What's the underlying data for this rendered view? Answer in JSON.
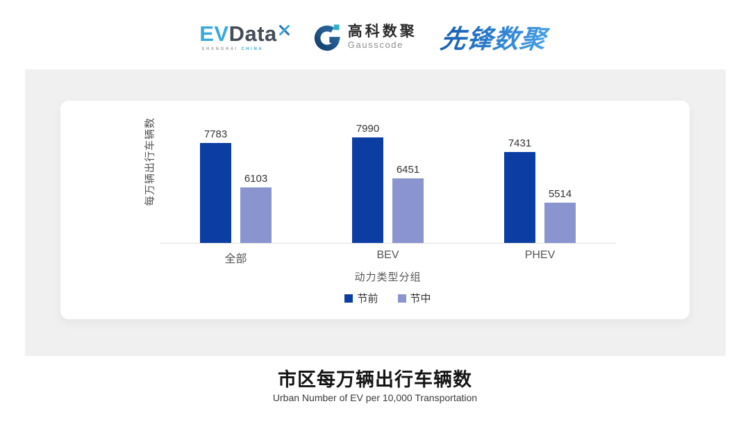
{
  "header": {
    "evdata": {
      "ev": "EV",
      "data": "Data",
      "sub_left": "SHANGHAI",
      "sub_right": "CHINA"
    },
    "gausscode": {
      "cn": "高科数聚",
      "en": "Gausscode"
    },
    "pioneer": {
      "text": "先锋数聚"
    }
  },
  "chart_data": {
    "type": "bar",
    "title": "市区每万辆出行车辆数",
    "subtitle": "Urban Number of EV per 10,000 Transportation",
    "ylabel": "每万辆出行车辆数",
    "xlabel": "动力类型分组",
    "categories": [
      "全部",
      "BEV",
      "PHEV"
    ],
    "series": [
      {
        "name": "节前",
        "color": "#0B3DA3",
        "values": [
          7783,
          7990,
          7431
        ]
      },
      {
        "name": "节中",
        "color": "#8A94CF",
        "values": [
          6103,
          6451,
          5514
        ]
      }
    ],
    "ylim": [
      4000,
      8200
    ],
    "grid": false,
    "legend_position": "bottom",
    "axis_line_color": "#e0e0e0"
  }
}
